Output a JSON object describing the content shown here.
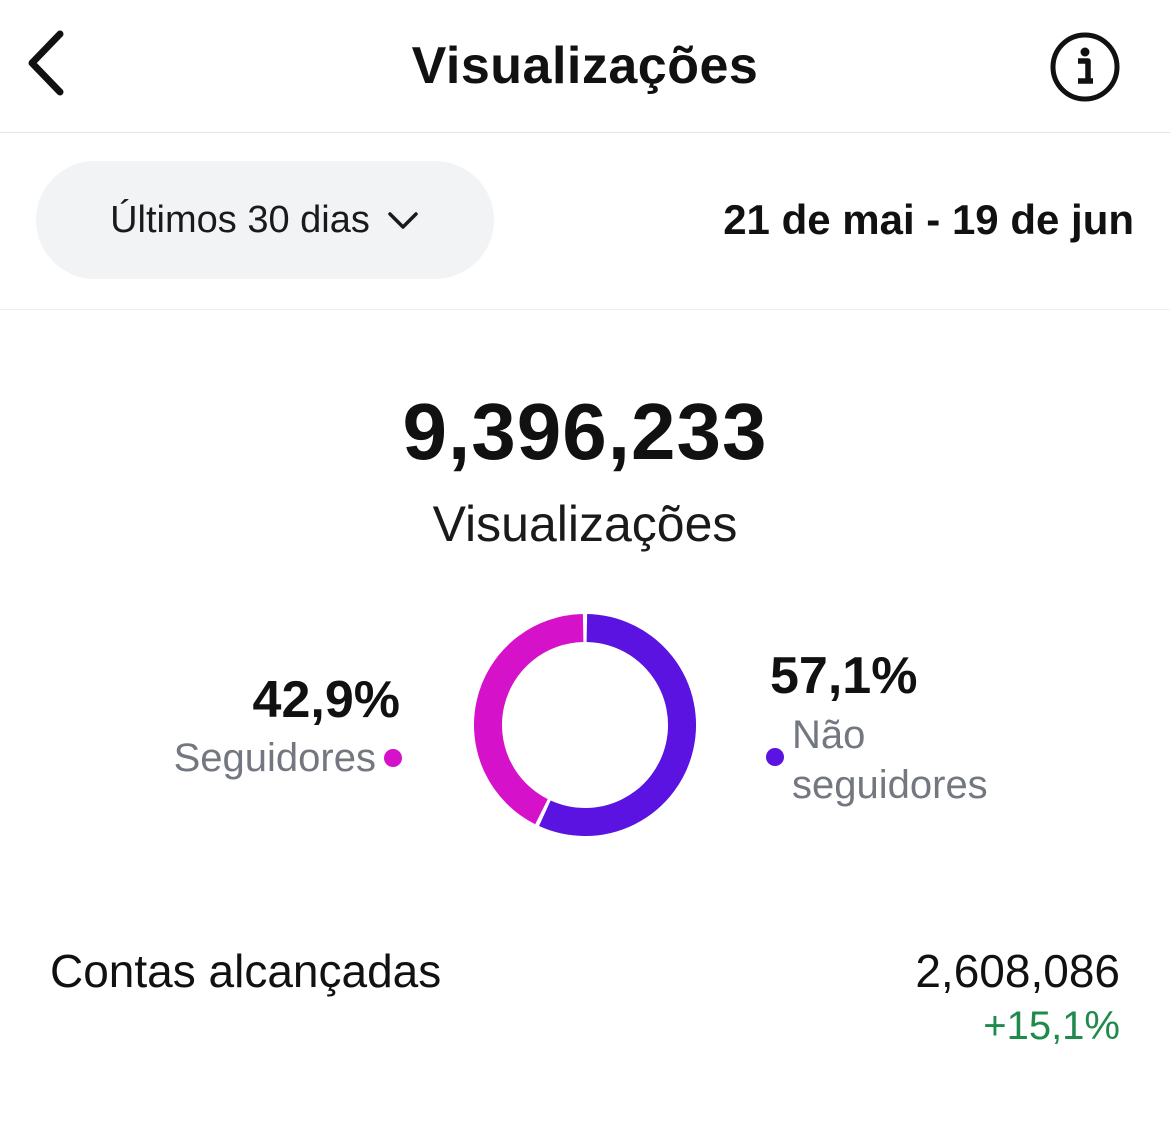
{
  "header": {
    "title": "Visualizações",
    "back_icon": "chevron-left-icon",
    "info_icon": "info-icon"
  },
  "filter": {
    "range_label": "Últimos 30 dias",
    "dropdown_icon": "chevron-down-icon",
    "date_range": "21 de mai - 19 de jun"
  },
  "summary": {
    "total_value": "9,396,233",
    "total_label": "Visualizações"
  },
  "breakdown": {
    "followers": {
      "percent": "42,9%",
      "label": "Seguidores",
      "fraction": 0.429,
      "color": "#d511c9"
    },
    "non_followers": {
      "percent": "57,1%",
      "label": "Não seguidores",
      "fraction": 0.571,
      "color": "#5a13e0"
    }
  },
  "reach": {
    "label": "Contas alcançadas",
    "value": "2,608,086",
    "change": "+15,1%",
    "change_color": "#1f8a4c"
  }
}
